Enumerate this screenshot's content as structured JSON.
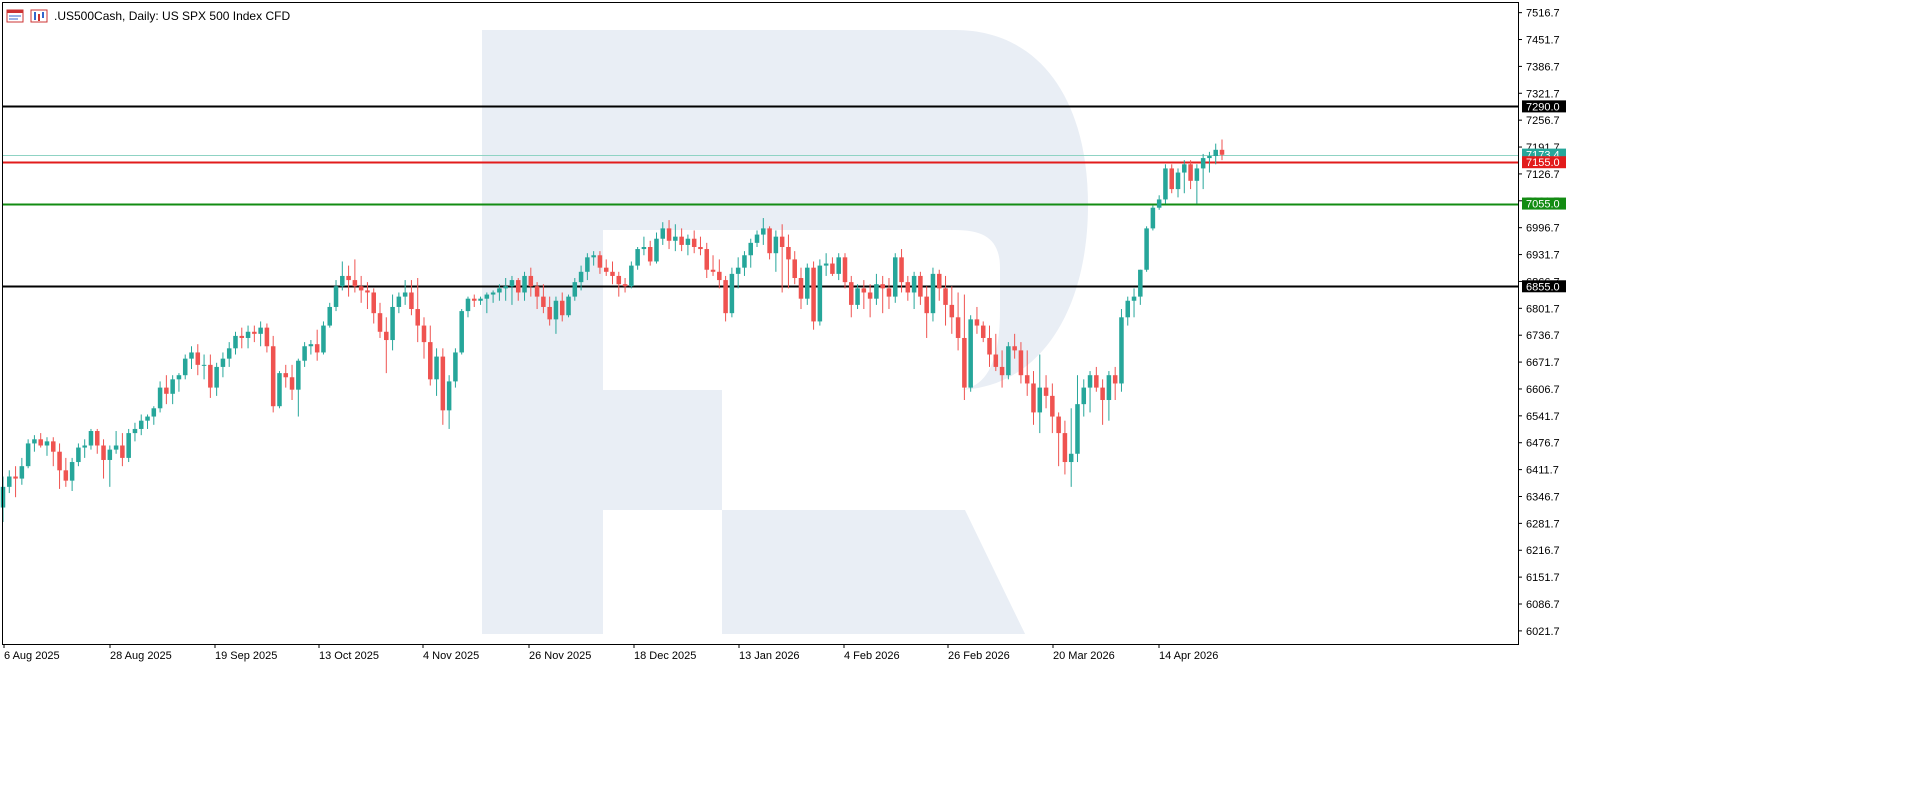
{
  "chart_data": {
    "type": "candlestick",
    "title": ".US500Cash, Daily:  US SPX 500 Index CFD",
    "ylim": [
      5990.0,
      7540.0
    ],
    "price_ticks": [
      "7516.7",
      "7451.7",
      "7386.7",
      "7321.7",
      "7256.7",
      "7191.7",
      "7126.7",
      "7061.7",
      "6996.7",
      "6931.7",
      "6866.7",
      "6801.7",
      "6736.7",
      "6671.7",
      "6606.7",
      "6541.7",
      "6476.7",
      "6411.7",
      "6346.7",
      "6281.7",
      "6216.7",
      "6151.7",
      "6086.7",
      "6021.7"
    ],
    "date_labels": [
      "6 Aug 2025",
      "28 Aug 2025",
      "19 Sep 2025",
      "13 Oct 2025",
      "4 Nov 2025",
      "26 Nov 2025",
      "18 Dec 2025",
      "13 Jan 2026",
      "4 Feb 2026",
      "26 Feb 2026",
      "20 Mar 2026",
      "14 Apr 2026"
    ],
    "levels": [
      {
        "value": 7290.0,
        "label": "7290.0",
        "color": "#000000"
      },
      {
        "value": 7173.4,
        "label": "7173.4",
        "color": "#8fd3c4"
      },
      {
        "value": 7155.0,
        "label": "7155.0",
        "color": "#e21b1b"
      },
      {
        "value": 7055.0,
        "label": "7055.0",
        "color": "#138c13"
      },
      {
        "value": 6855.0,
        "label": "6855.0",
        "color": "#000000"
      }
    ],
    "colors": {
      "up": "#26a69a",
      "down": "#ef5350",
      "watermark": "#e9eef5"
    },
    "candles": [
      [
        6320,
        6395,
        6285,
        6370
      ],
      [
        6370,
        6410,
        6355,
        6395
      ],
      [
        6395,
        6420,
        6345,
        6390
      ],
      [
        6390,
        6440,
        6375,
        6420
      ],
      [
        6420,
        6485,
        6415,
        6475
      ],
      [
        6475,
        6495,
        6455,
        6485
      ],
      [
        6485,
        6500,
        6465,
        6470
      ],
      [
        6470,
        6490,
        6445,
        6480
      ],
      [
        6480,
        6490,
        6420,
        6455
      ],
      [
        6455,
        6475,
        6365,
        6410
      ],
      [
        6410,
        6440,
        6370,
        6385
      ],
      [
        6385,
        6440,
        6360,
        6430
      ],
      [
        6430,
        6475,
        6420,
        6465
      ],
      [
        6465,
        6485,
        6440,
        6470
      ],
      [
        6470,
        6510,
        6460,
        6505
      ],
      [
        6505,
        6510,
        6450,
        6470
      ],
      [
        6470,
        6485,
        6390,
        6435
      ],
      [
        6435,
        6470,
        6370,
        6460
      ],
      [
        6460,
        6505,
        6450,
        6470
      ],
      [
        6470,
        6500,
        6420,
        6440
      ],
      [
        6440,
        6510,
        6430,
        6500
      ],
      [
        6500,
        6525,
        6480,
        6510
      ],
      [
        6510,
        6545,
        6495,
        6530
      ],
      [
        6530,
        6545,
        6510,
        6540
      ],
      [
        6540,
        6565,
        6520,
        6560
      ],
      [
        6560,
        6625,
        6550,
        6610
      ],
      [
        6610,
        6640,
        6570,
        6595
      ],
      [
        6595,
        6640,
        6570,
        6630
      ],
      [
        6630,
        6645,
        6600,
        6640
      ],
      [
        6640,
        6690,
        6630,
        6680
      ],
      [
        6680,
        6710,
        6655,
        6695
      ],
      [
        6695,
        6715,
        6640,
        6665
      ],
      [
        6665,
        6690,
        6630,
        6665
      ],
      [
        6665,
        6690,
        6585,
        6610
      ],
      [
        6610,
        6670,
        6590,
        6660
      ],
      [
        6660,
        6695,
        6635,
        6680
      ],
      [
        6680,
        6720,
        6660,
        6705
      ],
      [
        6705,
        6745,
        6690,
        6735
      ],
      [
        6735,
        6755,
        6705,
        6730
      ],
      [
        6730,
        6760,
        6705,
        6745
      ],
      [
        6745,
        6760,
        6720,
        6740
      ],
      [
        6740,
        6770,
        6710,
        6755
      ],
      [
        6755,
        6765,
        6695,
        6710
      ],
      [
        6710,
        6735,
        6550,
        6565
      ],
      [
        6565,
        6650,
        6560,
        6645
      ],
      [
        6645,
        6665,
        6610,
        6635
      ],
      [
        6635,
        6665,
        6580,
        6605
      ],
      [
        6605,
        6680,
        6540,
        6675
      ],
      [
        6675,
        6720,
        6660,
        6710
      ],
      [
        6710,
        6725,
        6690,
        6715
      ],
      [
        6715,
        6750,
        6675,
        6695
      ],
      [
        6695,
        6770,
        6690,
        6760
      ],
      [
        6760,
        6815,
        6755,
        6805
      ],
      [
        6805,
        6870,
        6795,
        6855
      ],
      [
        6855,
        6915,
        6845,
        6880
      ],
      [
        6880,
        6905,
        6830,
        6870
      ],
      [
        6870,
        6920,
        6840,
        6855
      ],
      [
        6855,
        6880,
        6815,
        6845
      ],
      [
        6845,
        6865,
        6800,
        6840
      ],
      [
        6840,
        6850,
        6765,
        6790
      ],
      [
        6790,
        6815,
        6730,
        6745
      ],
      [
        6745,
        6780,
        6645,
        6725
      ],
      [
        6725,
        6835,
        6700,
        6805
      ],
      [
        6805,
        6840,
        6790,
        6830
      ],
      [
        6830,
        6870,
        6810,
        6840
      ],
      [
        6840,
        6870,
        6785,
        6800
      ],
      [
        6800,
        6875,
        6720,
        6760
      ],
      [
        6760,
        6780,
        6680,
        6720
      ],
      [
        6720,
        6760,
        6615,
        6630
      ],
      [
        6630,
        6705,
        6590,
        6685
      ],
      [
        6685,
        6705,
        6520,
        6555
      ],
      [
        6555,
        6640,
        6510,
        6625
      ],
      [
        6625,
        6705,
        6610,
        6695
      ],
      [
        6695,
        6800,
        6690,
        6795
      ],
      [
        6795,
        6830,
        6780,
        6825
      ],
      [
        6825,
        6835,
        6805,
        6820
      ],
      [
        6820,
        6830,
        6810,
        6825
      ],
      [
        6825,
        6840,
        6790,
        6835
      ],
      [
        6835,
        6845,
        6815,
        6840
      ],
      [
        6840,
        6860,
        6820,
        6850
      ],
      [
        6850,
        6875,
        6820,
        6855
      ],
      [
        6855,
        6880,
        6810,
        6870
      ],
      [
        6870,
        6875,
        6820,
        6840
      ],
      [
        6840,
        6890,
        6820,
        6880
      ],
      [
        6880,
        6900,
        6830,
        6855
      ],
      [
        6855,
        6865,
        6800,
        6830
      ],
      [
        6830,
        6860,
        6790,
        6805
      ],
      [
        6805,
        6830,
        6760,
        6775
      ],
      [
        6775,
        6830,
        6740,
        6820
      ],
      [
        6820,
        6840,
        6770,
        6785
      ],
      [
        6785,
        6835,
        6780,
        6830
      ],
      [
        6830,
        6875,
        6820,
        6865
      ],
      [
        6865,
        6905,
        6845,
        6890
      ],
      [
        6890,
        6935,
        6870,
        6925
      ],
      [
        6925,
        6940,
        6905,
        6930
      ],
      [
        6930,
        6940,
        6885,
        6900
      ],
      [
        6900,
        6920,
        6880,
        6890
      ],
      [
        6890,
        6915,
        6860,
        6880
      ],
      [
        6880,
        6890,
        6830,
        6860
      ],
      [
        6860,
        6875,
        6840,
        6855
      ],
      [
        6855,
        6915,
        6850,
        6905
      ],
      [
        6905,
        6950,
        6895,
        6945
      ],
      [
        6945,
        6975,
        6930,
        6950
      ],
      [
        6950,
        6965,
        6905,
        6915
      ],
      [
        6915,
        6985,
        6910,
        6970
      ],
      [
        6970,
        7010,
        6955,
        6995
      ],
      [
        6995,
        7015,
        6945,
        6965
      ],
      [
        6965,
        7005,
        6940,
        6975
      ],
      [
        6975,
        6995,
        6940,
        6955
      ],
      [
        6955,
        6980,
        6930,
        6970
      ],
      [
        6970,
        6990,
        6935,
        6950
      ],
      [
        6950,
        6975,
        6930,
        6945
      ],
      [
        6945,
        6960,
        6875,
        6895
      ],
      [
        6895,
        6930,
        6880,
        6890
      ],
      [
        6890,
        6920,
        6850,
        6870
      ],
      [
        6870,
        6880,
        6770,
        6790
      ],
      [
        6790,
        6900,
        6780,
        6885
      ],
      [
        6885,
        6925,
        6850,
        6900
      ],
      [
        6900,
        6940,
        6880,
        6930
      ],
      [
        6930,
        6970,
        6900,
        6960
      ],
      [
        6960,
        6990,
        6950,
        6980
      ],
      [
        6980,
        7020,
        6955,
        6995
      ],
      [
        6995,
        7000,
        6920,
        6935
      ],
      [
        6935,
        6990,
        6890,
        6975
      ],
      [
        6975,
        7005,
        6840,
        6950
      ],
      [
        6950,
        6980,
        6850,
        6920
      ],
      [
        6920,
        6940,
        6860,
        6875
      ],
      [
        6875,
        6900,
        6800,
        6825
      ],
      [
        6825,
        6910,
        6810,
        6900
      ],
      [
        6900,
        6915,
        6750,
        6770
      ],
      [
        6770,
        6920,
        6760,
        6905
      ],
      [
        6905,
        6935,
        6880,
        6910
      ],
      [
        6910,
        6925,
        6880,
        6885
      ],
      [
        6885,
        6935,
        6870,
        6925
      ],
      [
        6925,
        6935,
        6850,
        6865
      ],
      [
        6865,
        6880,
        6780,
        6810
      ],
      [
        6810,
        6860,
        6800,
        6850
      ],
      [
        6850,
        6870,
        6800,
        6840
      ],
      [
        6840,
        6860,
        6780,
        6825
      ],
      [
        6825,
        6885,
        6810,
        6860
      ],
      [
        6860,
        6880,
        6790,
        6850
      ],
      [
        6850,
        6875,
        6800,
        6830
      ],
      [
        6830,
        6935,
        6815,
        6925
      ],
      [
        6925,
        6945,
        6840,
        6865
      ],
      [
        6865,
        6880,
        6820,
        6840
      ],
      [
        6840,
        6890,
        6800,
        6880
      ],
      [
        6880,
        6890,
        6810,
        6830
      ],
      [
        6830,
        6855,
        6730,
        6790
      ],
      [
        6790,
        6900,
        6770,
        6885
      ],
      [
        6885,
        6895,
        6820,
        6850
      ],
      [
        6850,
        6880,
        6760,
        6810
      ],
      [
        6810,
        6855,
        6740,
        6780
      ],
      [
        6780,
        6840,
        6700,
        6730
      ],
      [
        6730,
        6835,
        6580,
        6610
      ],
      [
        6610,
        6785,
        6600,
        6775
      ],
      [
        6775,
        6805,
        6740,
        6760
      ],
      [
        6760,
        6770,
        6720,
        6730
      ],
      [
        6730,
        6760,
        6660,
        6690
      ],
      [
        6690,
        6740,
        6650,
        6660
      ],
      [
        6660,
        6700,
        6610,
        6640
      ],
      [
        6640,
        6720,
        6630,
        6710
      ],
      [
        6710,
        6740,
        6680,
        6700
      ],
      [
        6700,
        6720,
        6620,
        6640
      ],
      [
        6640,
        6700,
        6590,
        6620
      ],
      [
        6620,
        6650,
        6520,
        6550
      ],
      [
        6550,
        6690,
        6500,
        6610
      ],
      [
        6610,
        6640,
        6560,
        6590
      ],
      [
        6590,
        6620,
        6500,
        6540
      ],
      [
        6540,
        6550,
        6420,
        6500
      ],
      [
        6500,
        6530,
        6400,
        6430
      ],
      [
        6430,
        6560,
        6370,
        6450
      ],
      [
        6450,
        6640,
        6430,
        6570
      ],
      [
        6570,
        6630,
        6540,
        6610
      ],
      [
        6610,
        6650,
        6550,
        6640
      ],
      [
        6640,
        6660,
        6600,
        6610
      ],
      [
        6610,
        6630,
        6520,
        6580
      ],
      [
        6580,
        6650,
        6530,
        6640
      ],
      [
        6640,
        6660,
        6580,
        6620
      ],
      [
        6620,
        6800,
        6600,
        6780
      ],
      [
        6780,
        6830,
        6760,
        6820
      ],
      [
        6820,
        6850,
        6780,
        6830
      ],
      [
        6830,
        6895,
        6810,
        6895
      ],
      [
        6895,
        7000,
        6890,
        6995
      ],
      [
        6995,
        7050,
        6990,
        7045
      ],
      [
        7045,
        7075,
        7040,
        7065
      ],
      [
        7065,
        7150,
        7055,
        7140
      ],
      [
        7140,
        7150,
        7080,
        7090
      ],
      [
        7090,
        7140,
        7070,
        7130
      ],
      [
        7130,
        7160,
        7080,
        7150
      ],
      [
        7150,
        7160,
        7090,
        7110
      ],
      [
        7110,
        7150,
        7055,
        7140
      ],
      [
        7140,
        7175,
        7090,
        7165
      ],
      [
        7165,
        7180,
        7130,
        7170
      ],
      [
        7170,
        7200,
        7150,
        7185
      ],
      [
        7185,
        7210,
        7160,
        7173
      ]
    ]
  }
}
